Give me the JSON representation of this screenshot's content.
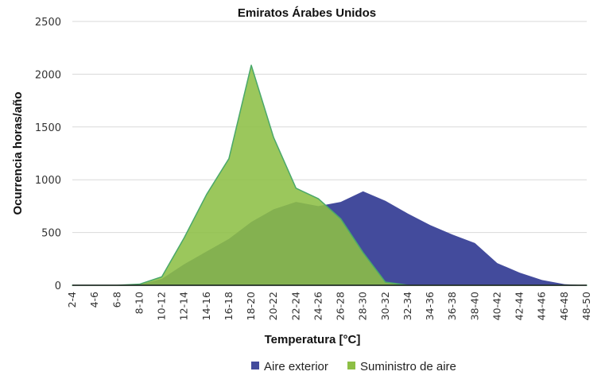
{
  "chart_data": {
    "type": "area",
    "title": "Emiratos Árabes Unidos",
    "xlabel": "Temperatura [°C]",
    "ylabel": "Ocurrencia horas/año",
    "ylim": [
      0,
      2500
    ],
    "yticks": [
      0,
      500,
      1000,
      1500,
      2000,
      2500
    ],
    "grid": true,
    "legend_position": "bottom",
    "categories": [
      "2-4",
      "4-6",
      "6-8",
      "8-10",
      "10-12",
      "12-14",
      "14-16",
      "16-18",
      "18-20",
      "20-22",
      "22-24",
      "24-26",
      "26-28",
      "28-30",
      "30-32",
      "32-34",
      "34-36",
      "36-38",
      "38-40",
      "40-42",
      "42-44",
      "44-46",
      "46-48",
      "48-50"
    ],
    "series": [
      {
        "name": "Aire exterior",
        "color": "#434b9c",
        "values": [
          0,
          0,
          0,
          5,
          60,
          200,
          320,
          440,
          600,
          720,
          790,
          750,
          790,
          890,
          800,
          680,
          570,
          480,
          400,
          210,
          120,
          50,
          10,
          0
        ]
      },
      {
        "name": "Suministro de aire",
        "color": "#8dbf45",
        "values": [
          0,
          0,
          0,
          10,
          80,
          450,
          860,
          1200,
          2085,
          1400,
          920,
          820,
          630,
          310,
          30,
          0,
          0,
          0,
          0,
          0,
          0,
          0,
          0,
          0
        ]
      }
    ]
  }
}
